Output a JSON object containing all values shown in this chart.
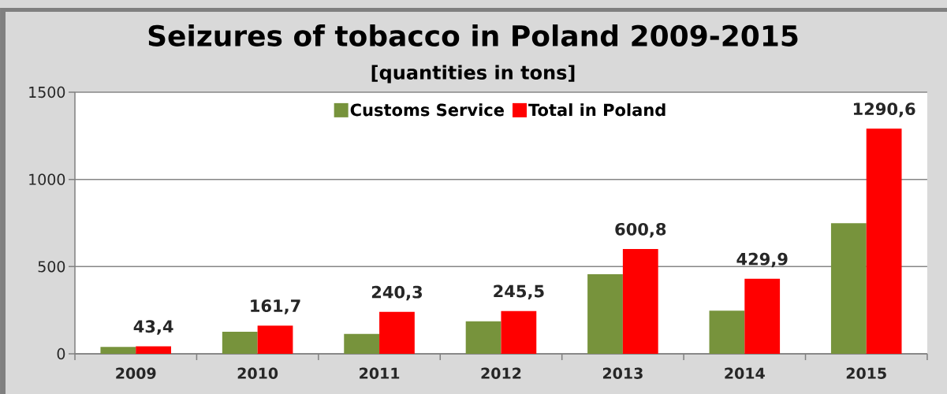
{
  "chart_data": {
    "type": "bar",
    "title": "Seizures of tobacco in Poland 2009-2015",
    "subtitle": "[quantities in tons]",
    "categories": [
      "2009",
      "2010",
      "2011",
      "2012",
      "2013",
      "2014",
      "2015"
    ],
    "series": [
      {
        "name": "Customs Service",
        "color": "#77933c",
        "values": [
          40,
          126,
          114,
          186,
          456,
          247,
          749
        ]
      },
      {
        "name": "Total in Poland",
        "color": "#ff0000",
        "values": [
          43.4,
          161.7,
          240.3,
          245.5,
          600.8,
          429.9,
          1290.6
        ],
        "value_labels": [
          "43,4",
          "161,7",
          "240,3",
          "245,5",
          "600,8",
          "429,9",
          "1290,6"
        ]
      }
    ],
    "ylim": [
      0,
      1500
    ],
    "yticks": [
      0,
      500,
      1000,
      1500
    ],
    "grid": "y",
    "legend": "top"
  }
}
